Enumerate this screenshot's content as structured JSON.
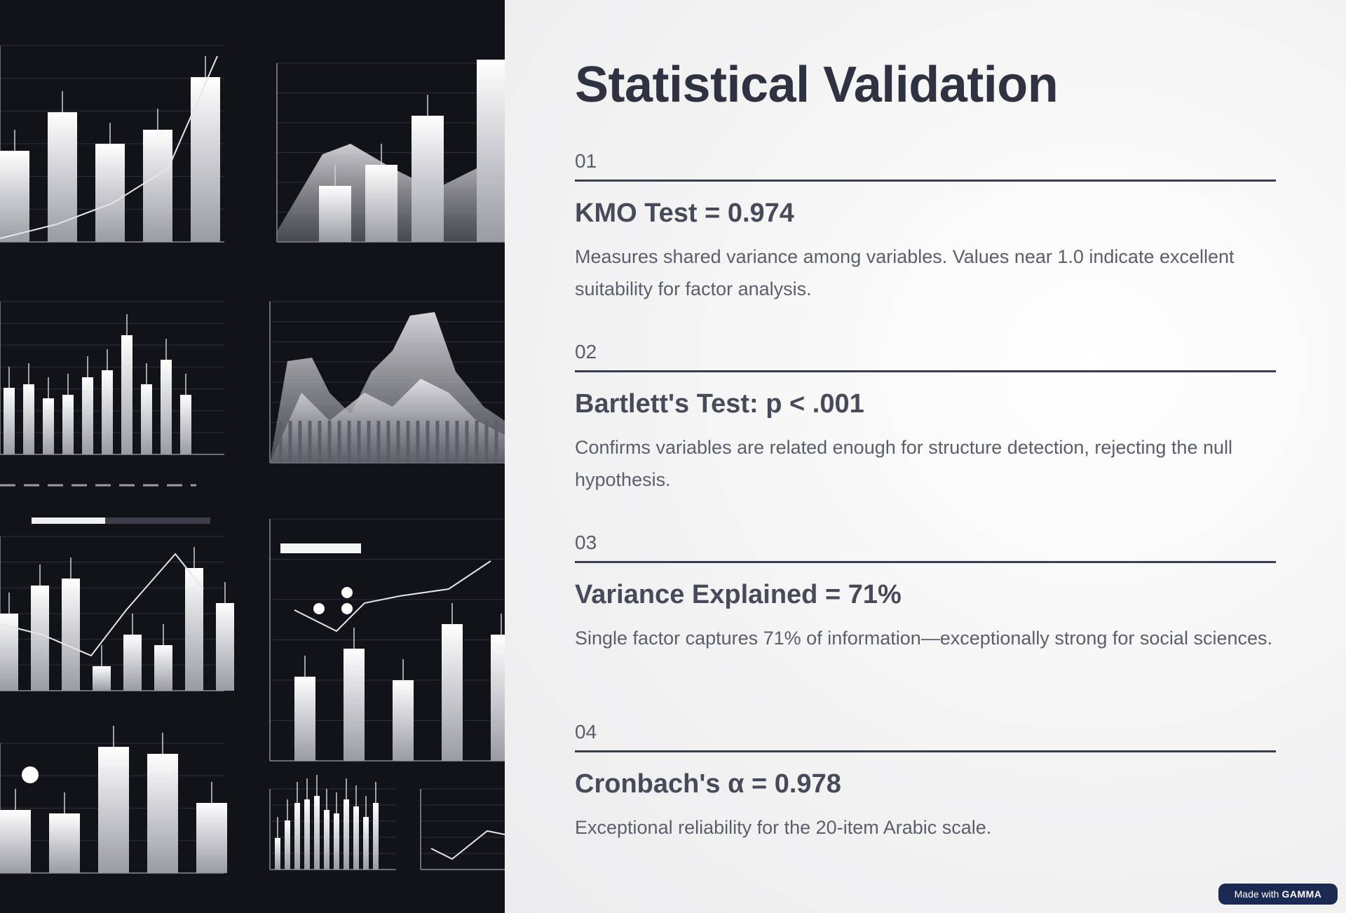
{
  "slide": {
    "title": "Statistical Validation",
    "items": [
      {
        "number": "01",
        "heading": "KMO Test = 0.974",
        "body": "Measures shared variance among variables. Values near 1.0 indicate excellent suitability for factor analysis."
      },
      {
        "number": "02",
        "heading": "Bartlett's Test: p < .001",
        "body": "Confirms variables are related enough for structure detection, rejecting the null hypothesis."
      },
      {
        "number": "03",
        "heading": "Variance Explained = 71%",
        "body": "Single factor captures 71% of information—exceptionally strong for social sciences."
      },
      {
        "number": "04",
        "heading": "Cronbach's α = 0.978",
        "body": "Exceptional reliability for the 20-item Arabic scale."
      }
    ]
  },
  "badge": {
    "prefix": "Made with",
    "brand": "GAMMA"
  },
  "image": {
    "icon": "decorative-charts-collage-image"
  },
  "colors": {
    "title": "#2f3241",
    "heading": "#474a58",
    "body": "#5b5e6b",
    "image_background": "#121319",
    "badge": "#1c2a52"
  }
}
